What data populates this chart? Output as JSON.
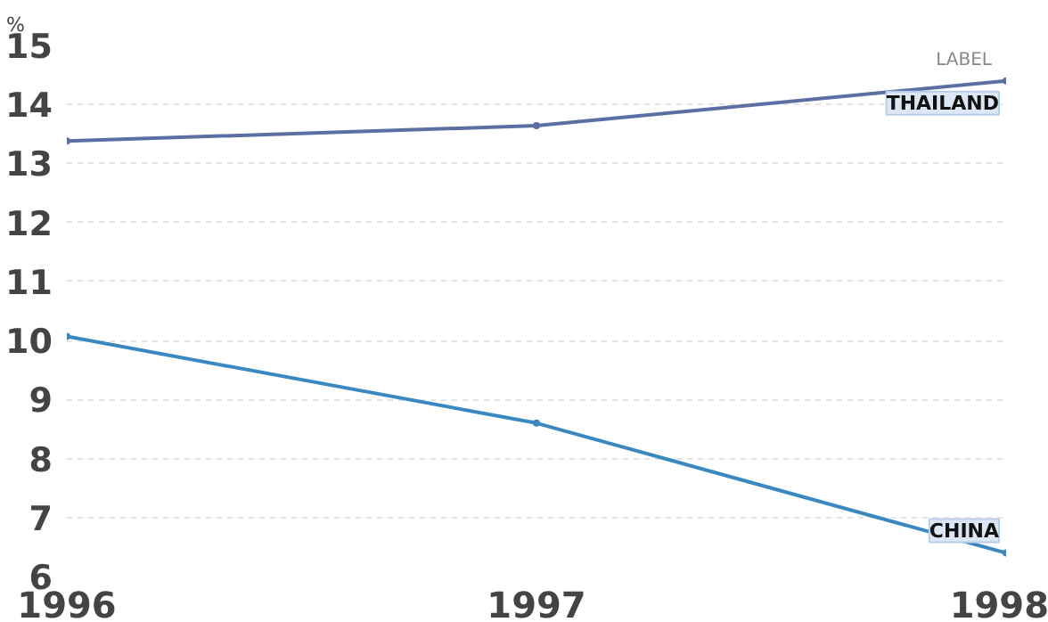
{
  "chart_data": {
    "type": "line",
    "ylabel": "%",
    "x": [
      1996,
      1997,
      1998
    ],
    "series": [
      {
        "name": "THAILAND",
        "color": "#5b6fa3",
        "values": [
          13.38,
          13.64,
          14.4
        ]
      },
      {
        "name": "CHINA",
        "color": "#3a88c2",
        "values": [
          10.07,
          8.6,
          6.4
        ]
      }
    ],
    "xlim": [
      1996,
      1998
    ],
    "xticks": [
      1996,
      1997,
      1998
    ],
    "ylim": [
      6,
      15
    ],
    "yticks": [
      6,
      7,
      8,
      9,
      10,
      11,
      12,
      13,
      14,
      15
    ],
    "grid": "y",
    "marker": "circle",
    "line_style": "solid",
    "annotations": [
      "LABEL"
    ]
  }
}
